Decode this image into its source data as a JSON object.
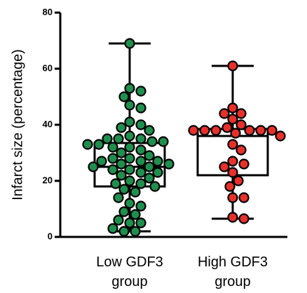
{
  "chart_data": {
    "type": "box",
    "ylabel": "Infarct size (percentage)",
    "categories": [
      "Low GDF3 group",
      "High GDF3 group"
    ],
    "ylim": [
      0,
      80
    ],
    "yticks": [
      0,
      20,
      40,
      60,
      80
    ],
    "series": [
      {
        "name": "Low GDF3 group",
        "color": "#1f8f4e",
        "min": 2,
        "q1": 18,
        "median": 25,
        "q3": 33.5,
        "max": 69,
        "points": [
          69,
          53,
          52,
          50,
          47,
          46,
          41,
          40,
          39,
          38,
          36,
          35,
          35,
          35,
          34,
          34,
          33,
          33,
          32,
          32,
          31,
          30,
          29,
          28,
          28,
          27,
          27,
          27,
          26,
          26,
          25,
          25,
          24,
          24,
          23,
          23,
          22,
          21,
          20,
          19,
          19,
          18,
          17,
          16,
          14,
          12,
          11,
          9,
          8,
          6,
          5,
          5,
          3,
          2,
          2
        ]
      },
      {
        "name": "High GDF3 group",
        "color": "#e8302a",
        "min": 6.5,
        "q1": 22,
        "median": 36,
        "q3": 38.5,
        "max": 61,
        "points": [
          61,
          46,
          44,
          44,
          42,
          40,
          39,
          38,
          38,
          38,
          38,
          38,
          38,
          37,
          36,
          33,
          31,
          27,
          26,
          25,
          23,
          20,
          18,
          14,
          14,
          7,
          6.5
        ]
      }
    ]
  }
}
